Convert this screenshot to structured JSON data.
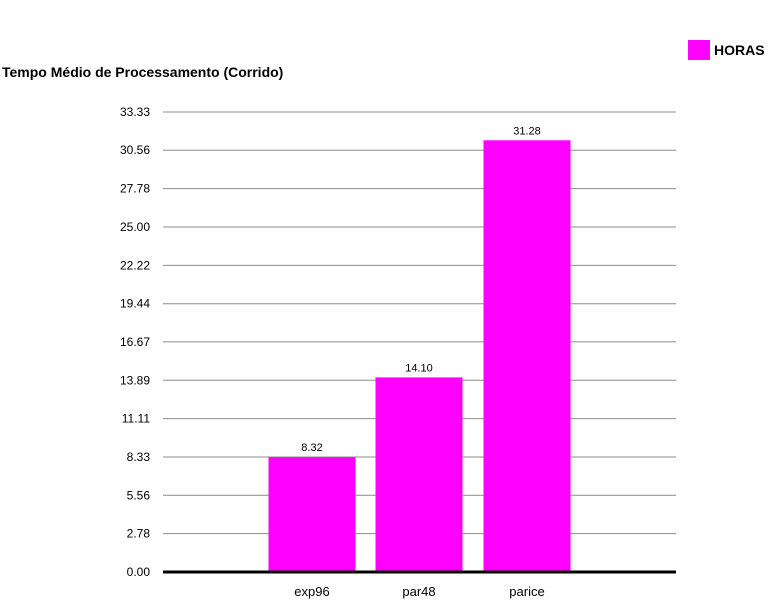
{
  "chart_data": {
    "type": "bar",
    "title": "Tempo Médio de Processamento (Corrido)",
    "categories": [
      "exp96",
      "par48",
      "parice"
    ],
    "series": [
      {
        "name": "HORAS",
        "values": [
          8.32,
          14.1,
          31.28
        ],
        "value_labels": [
          "8.32",
          "14.10",
          "31.28"
        ]
      }
    ],
    "yticks": [
      "0.00",
      "2.78",
      "5.56",
      "8.33",
      "11.11",
      "13.89",
      "16.67",
      "19.44",
      "22.22",
      "25.00",
      "27.78",
      "30.56",
      "33.33"
    ],
    "ylim": [
      0,
      33.33
    ],
    "grid": true,
    "legend_position": "top-right",
    "bar_color": "#ff00ff"
  }
}
